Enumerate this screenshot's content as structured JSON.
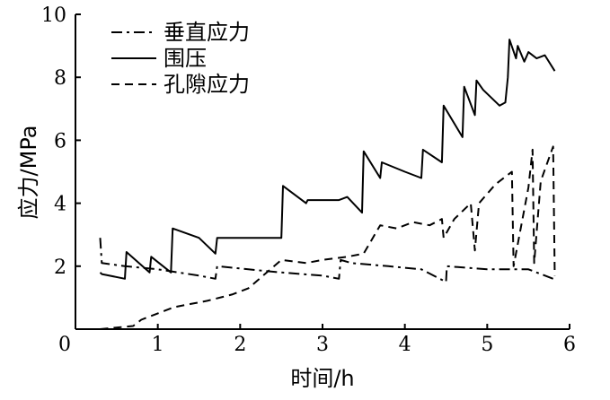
{
  "chart_data": {
    "type": "line",
    "title": "",
    "xlabel": "时间/h",
    "ylabel": "应力/MPa",
    "xlim": [
      0,
      6
    ],
    "ylim": [
      0,
      10
    ],
    "xticks": [
      0,
      1,
      2,
      3,
      4,
      5,
      6
    ],
    "yticks": [
      2,
      4,
      6,
      8,
      10
    ],
    "grid": false,
    "legend_position": "top-left",
    "series": [
      {
        "name": "垂直应力",
        "style": "dashdot",
        "color": "#000000",
        "x": [
          0.3,
          0.32,
          0.6,
          1.0,
          1.5,
          1.7,
          1.72,
          2.1,
          2.5,
          3.0,
          3.2,
          3.22,
          3.35,
          3.8,
          4.2,
          4.5,
          4.51,
          5.0,
          5.5,
          5.8
        ],
        "y": [
          2.9,
          2.1,
          2.0,
          1.9,
          1.7,
          1.6,
          2.0,
          1.9,
          1.8,
          1.7,
          1.6,
          2.2,
          2.1,
          2.0,
          1.9,
          1.5,
          2.0,
          1.9,
          1.9,
          1.6
        ]
      },
      {
        "name": "围压",
        "style": "solid",
        "color": "#000000",
        "x": [
          0.3,
          0.32,
          0.6,
          0.62,
          0.9,
          0.92,
          1.16,
          1.18,
          1.5,
          1.7,
          1.72,
          2.5,
          2.52,
          2.8,
          2.82,
          3.2,
          3.3,
          3.48,
          3.5,
          3.7,
          3.72,
          4.0,
          4.2,
          4.22,
          4.45,
          4.47,
          4.7,
          4.72,
          4.85,
          4.87,
          4.95,
          5.15,
          5.22,
          5.25,
          5.27,
          5.35,
          5.37,
          5.45,
          5.5,
          5.6,
          5.7,
          5.82
        ],
        "y": [
          1.8,
          1.75,
          1.6,
          2.45,
          1.8,
          2.3,
          1.8,
          3.2,
          2.9,
          2.4,
          2.9,
          2.9,
          4.55,
          4.0,
          4.1,
          4.1,
          4.2,
          3.7,
          5.65,
          4.8,
          5.3,
          5.0,
          4.8,
          5.7,
          5.3,
          7.1,
          6.1,
          7.7,
          6.8,
          7.9,
          7.6,
          7.1,
          7.2,
          8.0,
          9.2,
          8.6,
          9.0,
          8.5,
          8.8,
          8.6,
          8.7,
          8.2
        ]
      },
      {
        "name": "孔隙应力",
        "style": "dashed",
        "color": "#000000",
        "x": [
          0.3,
          0.5,
          0.7,
          0.8,
          1.0,
          1.2,
          1.4,
          1.6,
          1.9,
          2.1,
          2.5,
          2.8,
          3.0,
          3.3,
          3.5,
          3.7,
          3.9,
          4.1,
          4.3,
          4.45,
          4.47,
          4.6,
          4.8,
          4.85,
          4.9,
          5.1,
          5.3,
          5.32,
          5.5,
          5.55,
          5.57,
          5.65,
          5.8,
          5.82
        ],
        "y": [
          0.0,
          0.05,
          0.1,
          0.3,
          0.5,
          0.7,
          0.8,
          0.9,
          1.1,
          1.3,
          2.2,
          2.1,
          2.2,
          2.3,
          2.4,
          3.3,
          3.2,
          3.4,
          3.3,
          3.5,
          2.9,
          3.5,
          4.0,
          2.5,
          4.0,
          4.6,
          5.0,
          2.0,
          4.5,
          5.7,
          2.1,
          4.7,
          5.8,
          1.7
        ]
      }
    ]
  }
}
